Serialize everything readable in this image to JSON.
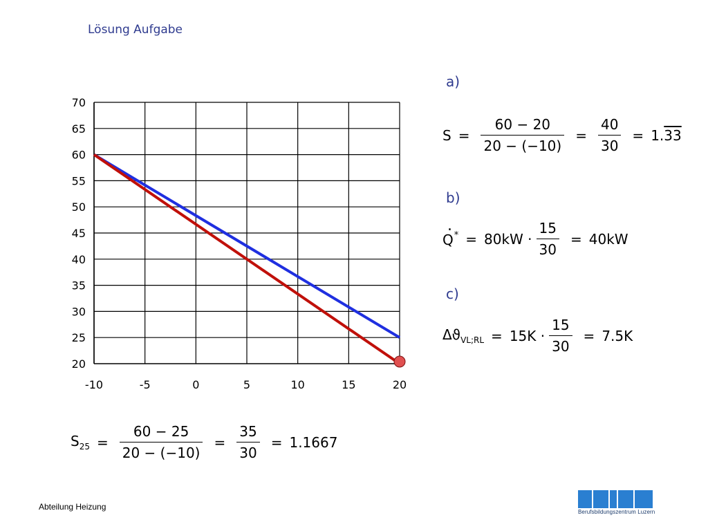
{
  "title": "Lösung Aufgabe",
  "footer": "Abteilung Heizung",
  "logo_text": "Berufsbildungszentrum Luzern",
  "colors": {
    "series_blue": "#1f2fe0",
    "series_red": "#c0100a",
    "marker": "#e05050",
    "label_blue": "#2f3b8f"
  },
  "chart_data": {
    "type": "line",
    "xlim": [
      -10,
      20
    ],
    "ylim": [
      20,
      70
    ],
    "xticks": [
      "-10",
      "-5",
      "0",
      "5",
      "10",
      "15",
      "20"
    ],
    "yticks": [
      "70",
      "65",
      "60",
      "55",
      "50",
      "45",
      "40",
      "35",
      "30",
      "25",
      "20"
    ],
    "grid": true,
    "series": [
      {
        "color": "#1f2fe0",
        "x": [
          -10,
          20
        ],
        "y": [
          60,
          25
        ]
      },
      {
        "color": "#c0100a",
        "x": [
          -10,
          20
        ],
        "y": [
          60,
          20
        ]
      }
    ],
    "marker": {
      "x": 20,
      "y": 20
    }
  },
  "equations": {
    "a": {
      "label": "a)",
      "lhs": "S",
      "eq": "=",
      "n1": "60 − 20",
      "d1": "20 − (−10)",
      "n2": "40",
      "d2": "30",
      "result_int": "1.",
      "result_rep": "33"
    },
    "b": {
      "label": "b)",
      "lhs": "Q",
      "sup": "*",
      "eq": "=",
      "f1": "80kW ·",
      "n": "15",
      "d": "30",
      "result": "40kW"
    },
    "c": {
      "label": "c)",
      "lhs": "Δϑ",
      "sub": "VL;RL",
      "eq": "=",
      "f1": "15K ·",
      "n": "15",
      "d": "30",
      "result": "7.5K"
    },
    "s25": {
      "lhs": "S",
      "sub": "25",
      "eq": "=",
      "n1": "60 − 25",
      "d1": "20 − (−10)",
      "n2": "35",
      "d2": "30",
      "result": "1.1667"
    }
  }
}
